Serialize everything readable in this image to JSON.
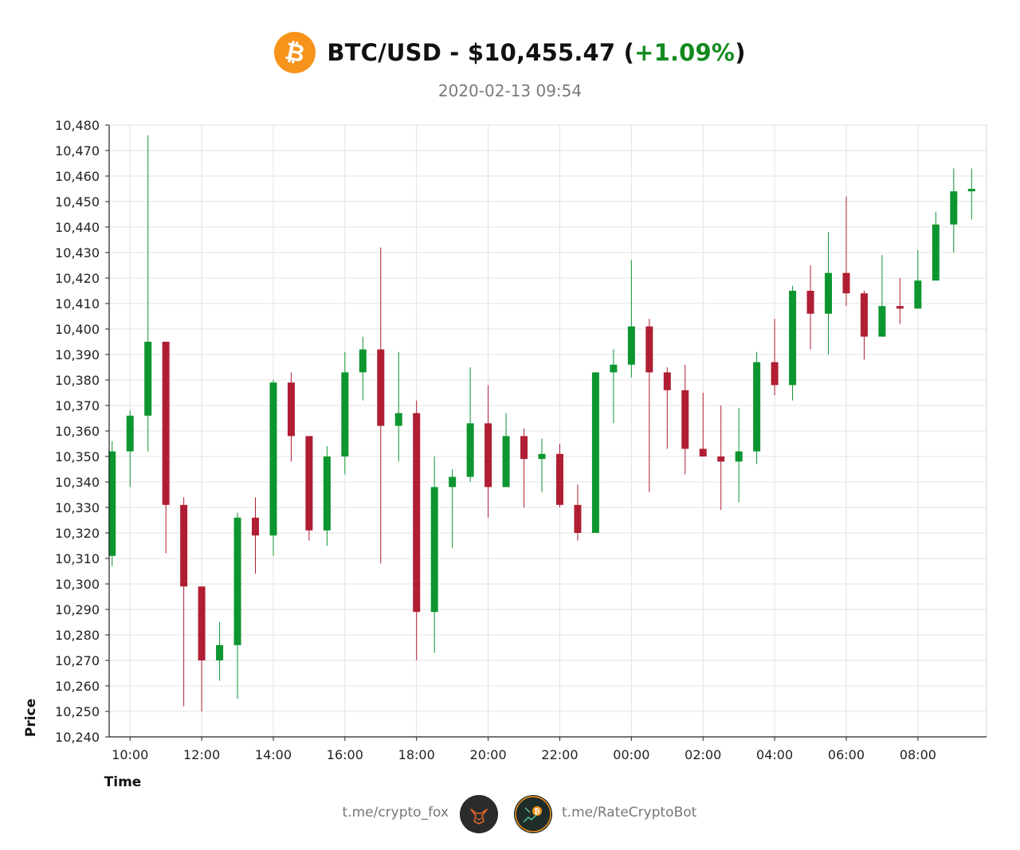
{
  "header": {
    "pair": "BTC/USD",
    "separator": " - ",
    "price": "$10,455.47",
    "paren_open": " (",
    "change": "+1.09%",
    "paren_close": ")",
    "timestamp": "2020-02-13 09:54"
  },
  "colors": {
    "up": "#0d9630",
    "down": "#b01e33",
    "change_text": "#138a1f",
    "bitcoin_orange": "#f7931a",
    "grid": "#e3e3e3"
  },
  "footer": {
    "left_link": "t.me/crypto_fox",
    "right_link": "t.me/RateCryptoBot",
    "left_avatar_icon": "fox-avatar-icon",
    "right_avatar_icon": "bitcoin-bot-avatar-icon"
  },
  "chart_data": {
    "type": "candlestick",
    "xlabel": "Time",
    "ylabel": "Price",
    "ylim": [
      10240,
      10480
    ],
    "y_ticks": [
      10240,
      10250,
      10260,
      10270,
      10280,
      10290,
      10300,
      10310,
      10320,
      10330,
      10340,
      10350,
      10360,
      10370,
      10380,
      10390,
      10400,
      10410,
      10420,
      10430,
      10440,
      10450,
      10460,
      10470,
      10480
    ],
    "y_tick_labels": [
      "10,240",
      "10,250",
      "10,260",
      "10,270",
      "10,280",
      "10,290",
      "10,300",
      "10,310",
      "10,320",
      "10,330",
      "10,340",
      "10,350",
      "10,360",
      "10,370",
      "10,380",
      "10,390",
      "10,400",
      "10,410",
      "10,420",
      "10,430",
      "10,440",
      "10,450",
      "10,460",
      "10,470",
      "10,480"
    ],
    "x_range": [
      "2020-02-12 09:25",
      "2020-02-13 09:55"
    ],
    "x_ticks": [
      "2020-02-12 10:00",
      "2020-02-12 12:00",
      "2020-02-12 14:00",
      "2020-02-12 16:00",
      "2020-02-12 18:00",
      "2020-02-12 20:00",
      "2020-02-12 22:00",
      "2020-02-13 00:00",
      "2020-02-13 02:00",
      "2020-02-13 04:00",
      "2020-02-13 06:00",
      "2020-02-13 08:00"
    ],
    "x_tick_labels": [
      "10:00",
      "12:00",
      "14:00",
      "16:00",
      "18:00",
      "20:00",
      "22:00",
      "00:00",
      "02:00",
      "04:00",
      "06:00",
      "08:00"
    ],
    "grid": true,
    "candles": [
      {
        "t": "2020-02-12 09:30",
        "o": 10311,
        "h": 10356,
        "l": 10307,
        "c": 10352
      },
      {
        "t": "2020-02-12 10:00",
        "o": 10352,
        "h": 10368,
        "l": 10338,
        "c": 10366
      },
      {
        "t": "2020-02-12 10:30",
        "o": 10366,
        "h": 10476,
        "l": 10352,
        "c": 10395
      },
      {
        "t": "2020-02-12 11:00",
        "o": 10395,
        "h": 10395,
        "l": 10312,
        "c": 10331
      },
      {
        "t": "2020-02-12 11:30",
        "o": 10331,
        "h": 10334,
        "l": 10252,
        "c": 10299
      },
      {
        "t": "2020-02-12 12:00",
        "o": 10299,
        "h": 10299,
        "l": 10250,
        "c": 10270
      },
      {
        "t": "2020-02-12 12:30",
        "o": 10270,
        "h": 10285,
        "l": 10262,
        "c": 10276
      },
      {
        "t": "2020-02-12 13:00",
        "o": 10276,
        "h": 10328,
        "l": 10255,
        "c": 10326
      },
      {
        "t": "2020-02-12 13:30",
        "o": 10326,
        "h": 10334,
        "l": 10304,
        "c": 10319
      },
      {
        "t": "2020-02-12 14:00",
        "o": 10319,
        "h": 10380,
        "l": 10311,
        "c": 10379
      },
      {
        "t": "2020-02-12 14:30",
        "o": 10379,
        "h": 10383,
        "l": 10348,
        "c": 10358
      },
      {
        "t": "2020-02-12 15:00",
        "o": 10358,
        "h": 10358,
        "l": 10317,
        "c": 10321
      },
      {
        "t": "2020-02-12 15:30",
        "o": 10321,
        "h": 10354,
        "l": 10315,
        "c": 10350
      },
      {
        "t": "2020-02-12 16:00",
        "o": 10350,
        "h": 10391,
        "l": 10343,
        "c": 10383
      },
      {
        "t": "2020-02-12 16:30",
        "o": 10383,
        "h": 10397,
        "l": 10372,
        "c": 10392
      },
      {
        "t": "2020-02-12 17:00",
        "o": 10392,
        "h": 10432,
        "l": 10308,
        "c": 10362
      },
      {
        "t": "2020-02-12 17:30",
        "o": 10362,
        "h": 10391,
        "l": 10348,
        "c": 10367
      },
      {
        "t": "2020-02-12 18:00",
        "o": 10367,
        "h": 10372,
        "l": 10270,
        "c": 10289
      },
      {
        "t": "2020-02-12 18:30",
        "o": 10289,
        "h": 10350,
        "l": 10273,
        "c": 10338
      },
      {
        "t": "2020-02-12 19:00",
        "o": 10338,
        "h": 10345,
        "l": 10314,
        "c": 10342
      },
      {
        "t": "2020-02-12 19:30",
        "o": 10342,
        "h": 10385,
        "l": 10340,
        "c": 10363
      },
      {
        "t": "2020-02-12 20:00",
        "o": 10363,
        "h": 10378,
        "l": 10326,
        "c": 10338
      },
      {
        "t": "2020-02-12 20:30",
        "o": 10338,
        "h": 10367,
        "l": 10338,
        "c": 10358
      },
      {
        "t": "2020-02-12 21:00",
        "o": 10358,
        "h": 10361,
        "l": 10330,
        "c": 10349
      },
      {
        "t": "2020-02-12 21:30",
        "o": 10349,
        "h": 10357,
        "l": 10336,
        "c": 10351
      },
      {
        "t": "2020-02-12 22:00",
        "o": 10351,
        "h": 10355,
        "l": 10330,
        "c": 10331
      },
      {
        "t": "2020-02-12 22:30",
        "o": 10331,
        "h": 10339,
        "l": 10317,
        "c": 10320
      },
      {
        "t": "2020-02-12 23:00",
        "o": 10320,
        "h": 10383,
        "l": 10320,
        "c": 10383
      },
      {
        "t": "2020-02-12 23:30",
        "o": 10383,
        "h": 10392,
        "l": 10363,
        "c": 10386
      },
      {
        "t": "2020-02-13 00:00",
        "o": 10386,
        "h": 10427,
        "l": 10381,
        "c": 10401
      },
      {
        "t": "2020-02-13 00:30",
        "o": 10401,
        "h": 10404,
        "l": 10336,
        "c": 10383
      },
      {
        "t": "2020-02-13 01:00",
        "o": 10383,
        "h": 10385,
        "l": 10353,
        "c": 10376
      },
      {
        "t": "2020-02-13 01:30",
        "o": 10376,
        "h": 10386,
        "l": 10343,
        "c": 10353
      },
      {
        "t": "2020-02-13 02:00",
        "o": 10353,
        "h": 10375,
        "l": 10350,
        "c": 10350
      },
      {
        "t": "2020-02-13 02:30",
        "o": 10350,
        "h": 10370,
        "l": 10329,
        "c": 10348
      },
      {
        "t": "2020-02-13 03:00",
        "o": 10348,
        "h": 10369,
        "l": 10332,
        "c": 10352
      },
      {
        "t": "2020-02-13 03:30",
        "o": 10352,
        "h": 10391,
        "l": 10347,
        "c": 10387
      },
      {
        "t": "2020-02-13 04:00",
        "o": 10387,
        "h": 10404,
        "l": 10374,
        "c": 10378
      },
      {
        "t": "2020-02-13 04:30",
        "o": 10378,
        "h": 10417,
        "l": 10372,
        "c": 10415
      },
      {
        "t": "2020-02-13 05:00",
        "o": 10415,
        "h": 10425,
        "l": 10392,
        "c": 10406
      },
      {
        "t": "2020-02-13 05:30",
        "o": 10406,
        "h": 10438,
        "l": 10390,
        "c": 10422
      },
      {
        "t": "2020-02-13 06:00",
        "o": 10422,
        "h": 10452,
        "l": 10409,
        "c": 10414
      },
      {
        "t": "2020-02-13 06:30",
        "o": 10414,
        "h": 10415,
        "l": 10388,
        "c": 10397
      },
      {
        "t": "2020-02-13 07:00",
        "o": 10397,
        "h": 10429,
        "l": 10397,
        "c": 10409
      },
      {
        "t": "2020-02-13 07:30",
        "o": 10409,
        "h": 10420,
        "l": 10402,
        "c": 10408
      },
      {
        "t": "2020-02-13 08:00",
        "o": 10408,
        "h": 10431,
        "l": 10408,
        "c": 10419
      },
      {
        "t": "2020-02-13 08:30",
        "o": 10419,
        "h": 10446,
        "l": 10419,
        "c": 10441
      },
      {
        "t": "2020-02-13 09:00",
        "o": 10441,
        "h": 10463,
        "l": 10430,
        "c": 10454
      },
      {
        "t": "2020-02-13 09:30",
        "o": 10454,
        "h": 10463,
        "l": 10443,
        "c": 10455
      }
    ]
  }
}
